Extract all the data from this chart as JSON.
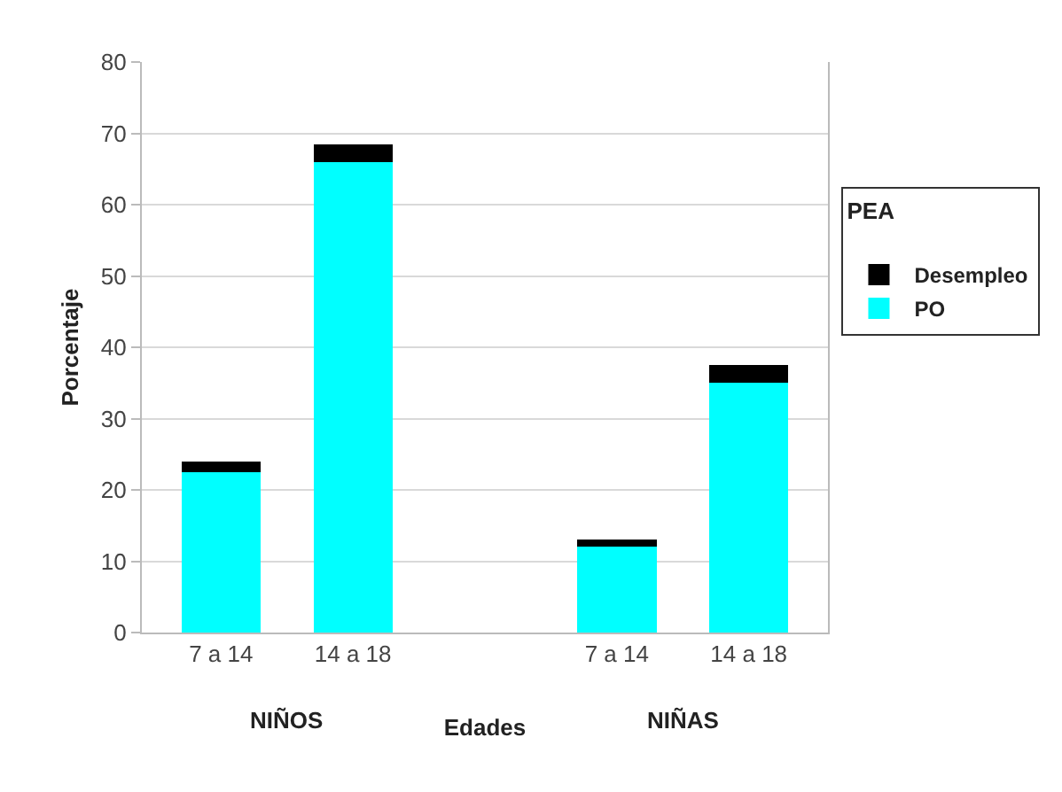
{
  "chart_data": {
    "type": "bar",
    "stacked": true,
    "xlabel": "Edades",
    "ylabel": "Porcentaje",
    "legend_title": "PEA",
    "legend": "right",
    "categories": [
      "7 a 14",
      "14 a 18",
      null,
      "7 a 14",
      "14 a 18"
    ],
    "series": [
      {
        "name": "PO",
        "color": "#00ffff",
        "values": [
          22.5,
          66,
          null,
          12,
          35
        ]
      },
      {
        "name": "Desempleo",
        "color": "#000000",
        "values": [
          1.5,
          2.5,
          null,
          1,
          2.5
        ]
      }
    ],
    "ylim": [
      0,
      80
    ],
    "yticks": [
      0,
      10,
      20,
      30,
      40,
      50,
      60,
      70,
      80
    ],
    "grid": "y",
    "annotations": [
      "NIÑOS",
      "NIÑAS"
    ]
  }
}
